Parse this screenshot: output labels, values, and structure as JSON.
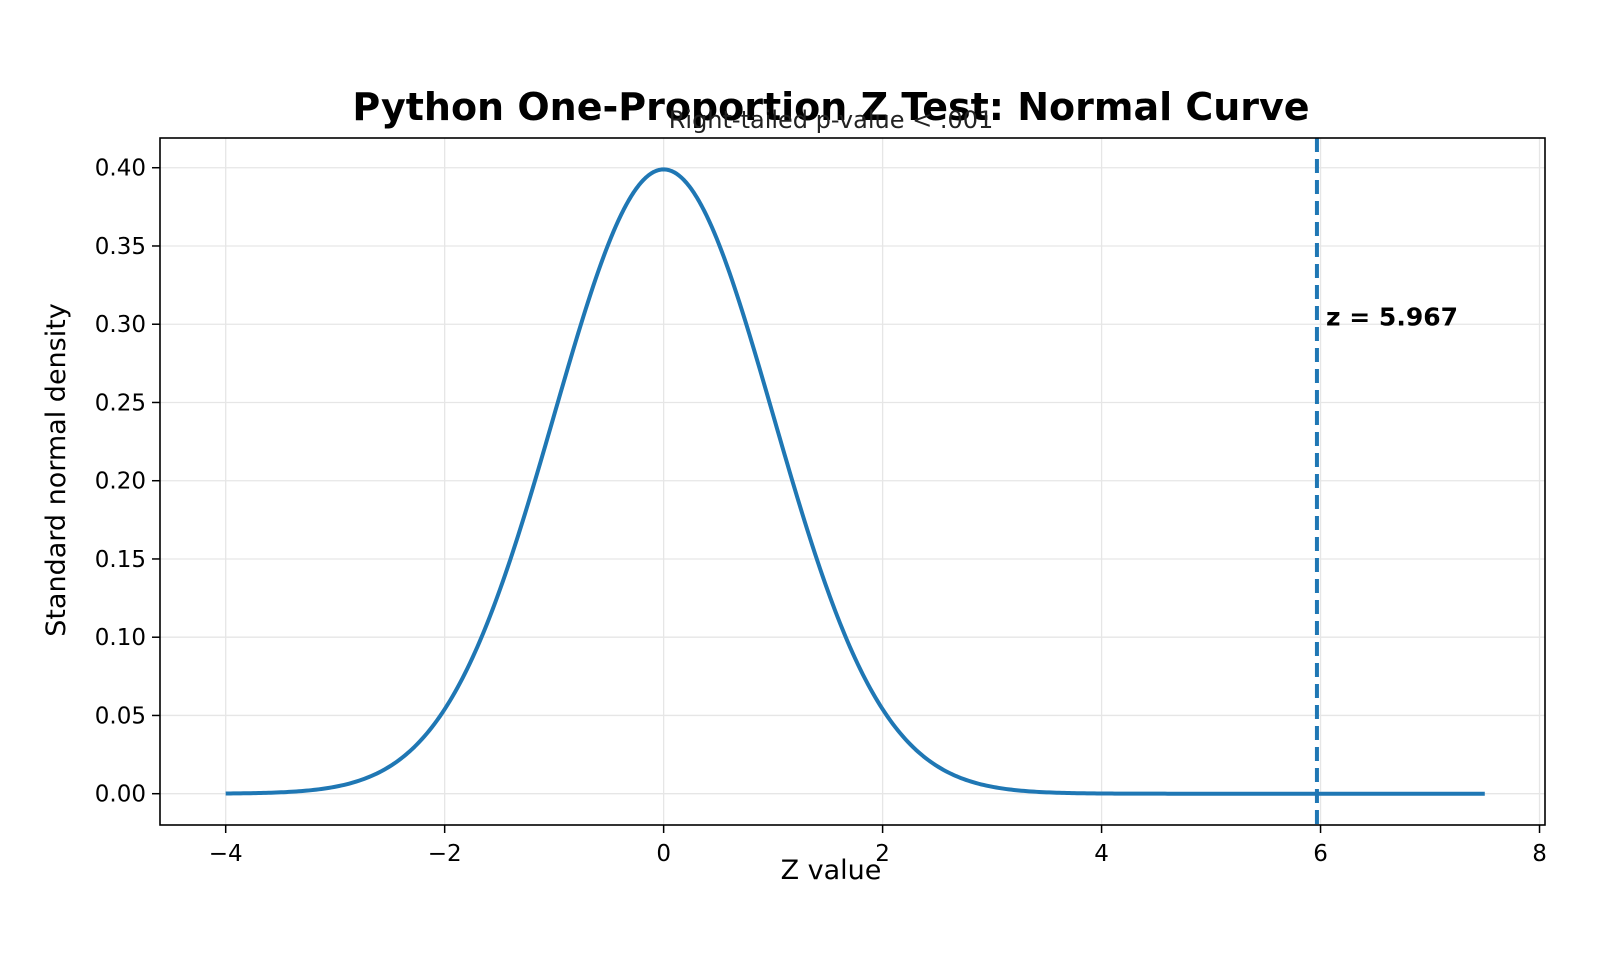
{
  "chart_data": {
    "type": "line",
    "title": "Python One-Proportion Z Test: Normal Curve",
    "subtitle": "Right-tailed p-value < .001",
    "xlabel": "Z value",
    "ylabel": "Standard normal density",
    "xlim": [
      -4.6,
      8.05
    ],
    "ylim": [
      -0.02,
      0.419
    ],
    "x_ticks": [
      -4,
      -2,
      0,
      2,
      4,
      6,
      8
    ],
    "x_tick_labels": [
      "−4",
      "−2",
      "0",
      "2",
      "4",
      "6",
      "8"
    ],
    "y_ticks": [
      0.0,
      0.05,
      0.1,
      0.15,
      0.2,
      0.25,
      0.3,
      0.35,
      0.4
    ],
    "y_tick_labels": [
      "0.00",
      "0.05",
      "0.10",
      "0.15",
      "0.20",
      "0.25",
      "0.30",
      "0.35",
      "0.40"
    ],
    "grid": true,
    "curve": {
      "function": "standard normal pdf",
      "x_start": -4,
      "x_end": 7.5,
      "color": "#1f77b4"
    },
    "reference_line": {
      "x": 5.967,
      "style": "dashed",
      "color": "#1f77b4"
    },
    "annotation": {
      "text": "z = 5.967",
      "x": 6.05,
      "y": 0.305
    }
  }
}
